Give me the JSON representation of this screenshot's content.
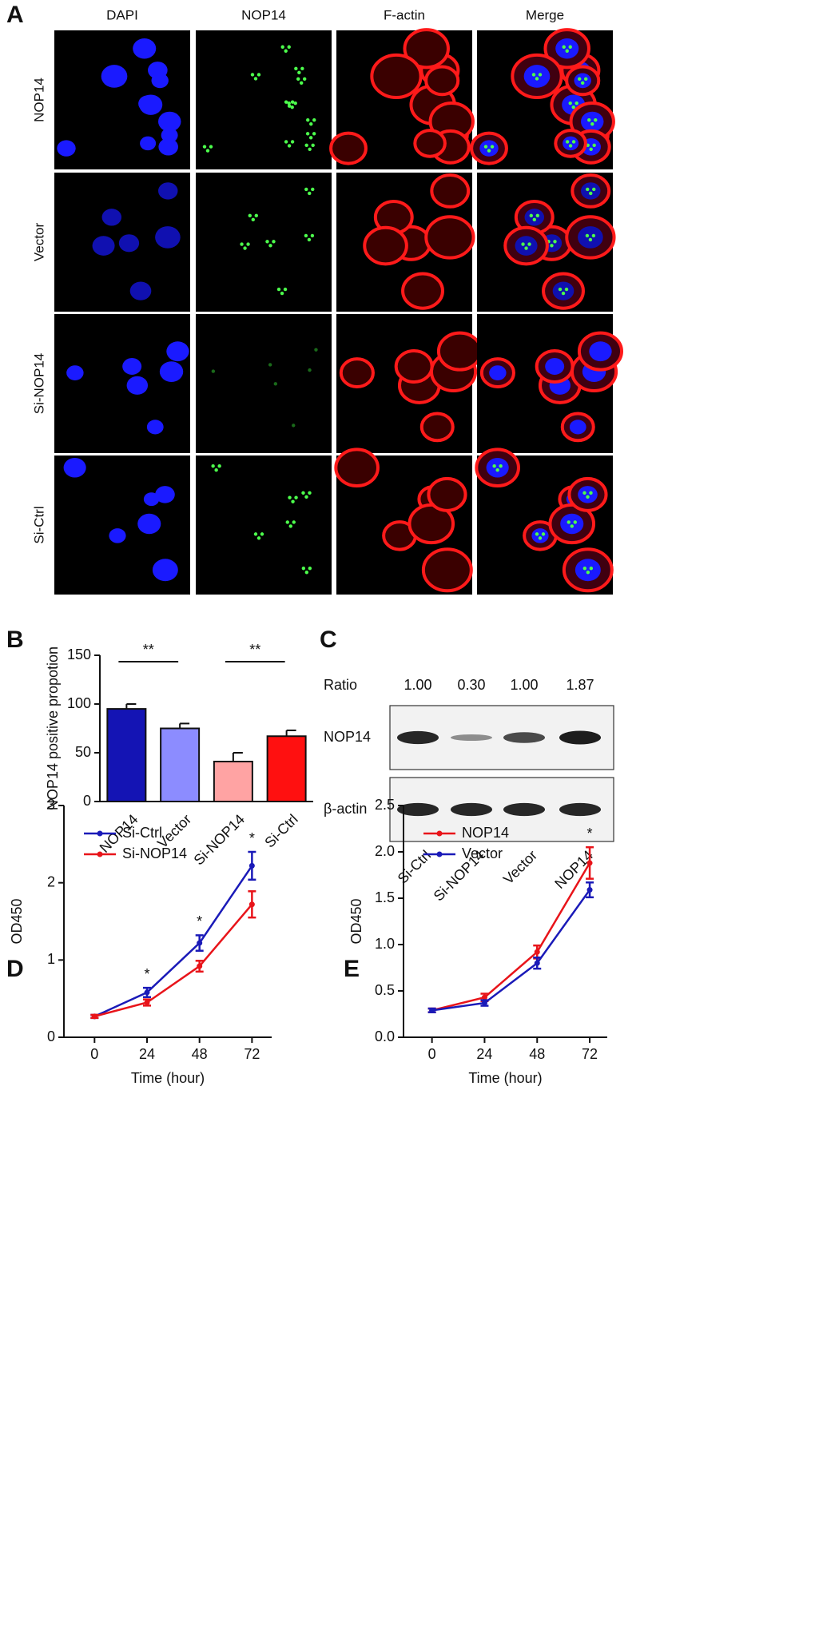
{
  "panel_labels": [
    "A",
    "B",
    "C",
    "D",
    "E"
  ],
  "panel_a": {
    "columns": [
      "DAPI",
      "NOP14",
      "F-actin",
      "Merge"
    ],
    "rows": [
      "NOP14",
      "Vector",
      "Si-NOP14",
      "Si-Ctrl"
    ]
  },
  "panel_c": {
    "ratio_label": "Ratio",
    "ratios": [
      "1.00",
      "0.30",
      "1.00",
      "1.87"
    ],
    "row_labels": [
      "NOP14",
      "β-actin"
    ],
    "lanes": [
      "Si-Ctrl",
      "Si-NOP14",
      "Vector",
      "NOP14"
    ]
  },
  "chart_data": [
    {
      "type": "bar",
      "y_label": "NOP14 positive propotion",
      "categories": [
        "NOP14",
        "Vector",
        "Si-NOP14",
        "Si-Ctrl"
      ],
      "values": [
        95,
        75,
        41,
        67
      ],
      "errors": [
        5,
        5,
        9,
        6
      ],
      "colors": [
        "#1414b4",
        "#8c8cff",
        "#ffa3a3",
        "#ff1010"
      ],
      "ylim": [
        0,
        150
      ],
      "yticks": [
        0,
        50,
        100,
        150
      ],
      "annotations": [
        {
          "text": "**",
          "from": "NOP14",
          "to": "Vector"
        },
        {
          "text": "**",
          "from": "Si-NOP14",
          "to": "Si-Ctrl"
        }
      ]
    },
    {
      "type": "line",
      "x_label": "Time (hour)",
      "y_label": "OD450",
      "x": [
        0,
        24,
        48,
        72
      ],
      "series": [
        {
          "name": "Si-Ctrl",
          "color": "#1a1ab8",
          "values": [
            0.27,
            0.58,
            1.22,
            2.22
          ],
          "errors": [
            0.02,
            0.06,
            0.1,
            0.18
          ]
        },
        {
          "name": "Si-NOP14",
          "color": "#e8141a",
          "values": [
            0.27,
            0.45,
            0.92,
            1.72
          ],
          "errors": [
            0.02,
            0.04,
            0.07,
            0.17
          ]
        }
      ],
      "xlim": [
        -14,
        81
      ],
      "ylim": [
        0,
        3
      ],
      "xticks": [
        0,
        24,
        48,
        72
      ],
      "yticks": [
        0,
        1,
        2,
        3
      ],
      "legend": "upper left",
      "annotations": [
        {
          "text": "*",
          "x": 24
        },
        {
          "text": "*",
          "x": 48
        },
        {
          "text": "*",
          "x": 72
        }
      ]
    },
    {
      "type": "line",
      "x_label": "Time (hour)",
      "y_label": "OD450",
      "x": [
        0,
        24,
        48,
        72
      ],
      "series": [
        {
          "name": "NOP14",
          "color": "#e8141a",
          "values": [
            0.29,
            0.43,
            0.92,
            1.88
          ],
          "errors": [
            0.02,
            0.04,
            0.07,
            0.17
          ]
        },
        {
          "name": "Vector",
          "color": "#1a1ab8",
          "values": [
            0.29,
            0.37,
            0.8,
            1.59
          ],
          "errors": [
            0.02,
            0.03,
            0.06,
            0.08
          ]
        }
      ],
      "xlim": [
        -13,
        80
      ],
      "ylim": [
        0,
        2.5
      ],
      "xticks": [
        0,
        24,
        48,
        72
      ],
      "yticks": [
        {
          "value": 0,
          "label": "0.0"
        },
        0.5,
        {
          "value": 1,
          "label": "1.0"
        },
        1.5,
        {
          "value": 2,
          "label": "2.0"
        },
        2.5
      ],
      "legend": "upper left",
      "annotations": [
        {
          "text": "*",
          "x": 72
        }
      ]
    }
  ]
}
